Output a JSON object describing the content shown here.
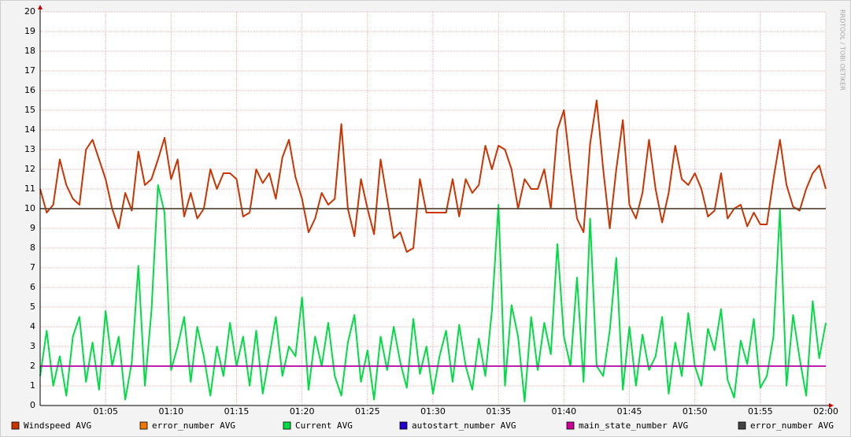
{
  "chart_data": {
    "type": "line",
    "watermark": "RRDTOOL / TOBI OETIKER",
    "x": [
      60,
      60.5,
      61,
      61.5,
      62,
      62.5,
      63,
      63.5,
      64,
      64.5,
      65,
      65.5,
      66,
      66.5,
      67,
      67.5,
      68,
      68.5,
      69,
      69.5,
      70,
      70.5,
      71,
      71.5,
      72,
      72.5,
      73,
      73.5,
      74,
      74.5,
      75,
      75.5,
      76,
      76.5,
      77,
      77.5,
      78,
      78.5,
      79,
      79.5,
      80,
      80.5,
      81,
      81.5,
      82,
      82.5,
      83,
      83.5,
      84,
      84.5,
      85,
      85.5,
      86,
      86.5,
      87,
      87.5,
      88,
      88.5,
      89,
      89.5,
      90,
      90.5,
      91,
      91.5,
      92,
      92.5,
      93,
      93.5,
      94,
      94.5,
      95,
      95.5,
      96,
      96.5,
      97,
      97.5,
      98,
      98.5,
      99,
      99.5,
      100,
      100.5,
      101,
      101.5,
      102,
      102.5,
      103,
      103.5,
      104,
      104.5,
      105,
      105.5,
      106,
      106.5,
      107,
      107.5,
      108,
      108.5,
      109,
      109.5,
      110,
      110.5,
      111,
      111.5,
      112,
      112.5,
      113,
      113.5,
      114,
      114.5,
      115,
      115.5,
      116,
      116.5,
      117,
      117.5,
      118,
      118.5,
      119,
      119.5,
      120
    ],
    "series": [
      {
        "name": "Windspeed AVG",
        "color": "#cc3300",
        "values": [
          11,
          9.8,
          10.2,
          12.5,
          11.2,
          10.5,
          10.2,
          13,
          13.5,
          12.5,
          11.5,
          10,
          9,
          10.8,
          9.9,
          12.9,
          11.2,
          11.5,
          12.5,
          13.6,
          11.5,
          12.5,
          9.6,
          10.8,
          9.5,
          10,
          12,
          11,
          11.8,
          11.8,
          11.5,
          9.6,
          9.8,
          12,
          11.3,
          11.8,
          10.5,
          12.6,
          13.5,
          11.6,
          10.5,
          8.8,
          9.5,
          10.8,
          10.2,
          10.5,
          14.3,
          10,
          8.6,
          11.5,
          10,
          8.7,
          12.5,
          10.5,
          8.5,
          8.8,
          7.8,
          8,
          11.5,
          9.8,
          9.8,
          9.8,
          9.8,
          11.5,
          9.6,
          11.5,
          10.8,
          11.2,
          13.2,
          12,
          13.2,
          13,
          12,
          10,
          11.5,
          11,
          11,
          12,
          10,
          14,
          15,
          12,
          9.5,
          8.8,
          13.3,
          15.5,
          12,
          9,
          12,
          14.5,
          10.2,
          9.5,
          10.8,
          13.5,
          11,
          9.3,
          10.8,
          13.2,
          11.5,
          11.2,
          11.8,
          11,
          9.6,
          9.9,
          11.8,
          9.5,
          10,
          10.2,
          9.1,
          9.8,
          9.2,
          9.2,
          11.5,
          13.5,
          11.2,
          10.1,
          9.9,
          11,
          11.8,
          12.2,
          11
        ]
      },
      {
        "name": "error_number AVG",
        "color": "#ee7700",
        "x": [
          60,
          120
        ],
        "values": [
          10,
          10
        ]
      },
      {
        "name": "Current AVG",
        "color": "#00dd44",
        "values": [
          1.5,
          3.8,
          1,
          2.5,
          0.5,
          3.5,
          4.5,
          1.2,
          3.2,
          0.8,
          4.8,
          2,
          3.5,
          0.3,
          2.2,
          7.1,
          1,
          4.8,
          11.2,
          9.8,
          1.8,
          3,
          4.5,
          1.2,
          4,
          2.5,
          0.5,
          3,
          1.5,
          4.2,
          2,
          3.5,
          1,
          3.8,
          0.6,
          2.5,
          4.5,
          1.5,
          3,
          2.5,
          5.5,
          0.8,
          3.5,
          2,
          4.2,
          1.5,
          0.5,
          3.2,
          4.6,
          1.2,
          2.8,
          0.3,
          3.5,
          1.8,
          4,
          2.2,
          0.9,
          4.4,
          1.6,
          3,
          0.6,
          2.5,
          3.8,
          1.2,
          4.1,
          2,
          0.8,
          3.4,
          1.5,
          4.8,
          10.2,
          1,
          5.1,
          3.5,
          0.2,
          4.5,
          1.8,
          4.2,
          2.6,
          8.2,
          3.5,
          2,
          6.5,
          1.2,
          9.5,
          2,
          1.5,
          3.8,
          7.5,
          0.8,
          4,
          1,
          3.6,
          1.8,
          2.5,
          4.5,
          0.6,
          3.2,
          1.5,
          4.7,
          2,
          1,
          3.9,
          2.8,
          4.9,
          1.3,
          0.4,
          3.3,
          2.1,
          4.4,
          0.9,
          1.5,
          3.5,
          10,
          1,
          4.6,
          2.4,
          0.5,
          5.3,
          2.4,
          4.2
        ]
      },
      {
        "name": "autostart_number AVG",
        "color": "#2200cc",
        "x": [
          60,
          120
        ],
        "values": [
          2,
          2
        ]
      },
      {
        "name": "main_state_number AVG",
        "color": "#cc0099",
        "x": [
          60,
          120
        ],
        "values": [
          2,
          2
        ]
      },
      {
        "name": "error_number AVG",
        "color": "#444444",
        "x": [
          60,
          120
        ],
        "values": [
          10,
          10
        ]
      }
    ],
    "xlim": [
      60,
      120
    ],
    "xticks": [
      {
        "value": 65,
        "label": "01:05"
      },
      {
        "value": 70,
        "label": "01:10"
      },
      {
        "value": 75,
        "label": "01:15"
      },
      {
        "value": 80,
        "label": "01:20"
      },
      {
        "value": 85,
        "label": "01:25"
      },
      {
        "value": 90,
        "label": "01:30"
      },
      {
        "value": 95,
        "label": "01:35"
      },
      {
        "value": 100,
        "label": "01:40"
      },
      {
        "value": 105,
        "label": "01:45"
      },
      {
        "value": 110,
        "label": "01:50"
      },
      {
        "value": 115,
        "label": "01:55"
      },
      {
        "value": 120,
        "label": "02:00"
      }
    ],
    "ylim": [
      0,
      20
    ],
    "yticks": [
      0,
      1,
      2,
      3,
      4,
      5,
      6,
      7,
      8,
      9,
      10,
      11,
      12,
      13,
      14,
      15,
      16,
      17,
      18,
      19,
      20
    ],
    "grid": true
  }
}
